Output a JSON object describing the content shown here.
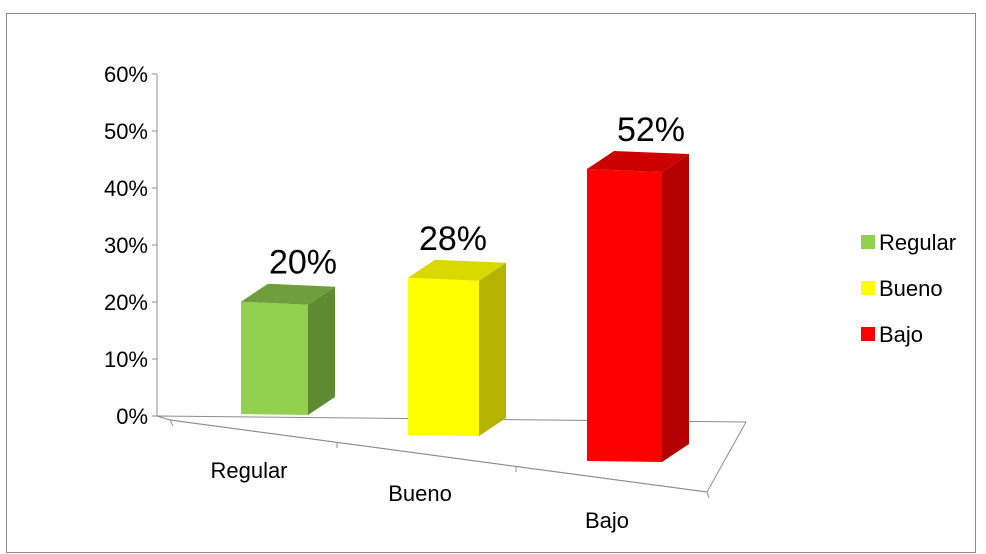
{
  "chart_data": {
    "type": "bar",
    "categories": [
      "Regular",
      "Bueno",
      "Bajo"
    ],
    "values": [
      20,
      28,
      52
    ],
    "data_labels": [
      "20%",
      "28%",
      "52%"
    ],
    "y_ticks": [
      "0%",
      "10%",
      "20%",
      "30%",
      "40%",
      "50%",
      "60%"
    ],
    "ylim": [
      0,
      60
    ],
    "grid": false,
    "legend_placement": "right",
    "legend": [
      "Regular",
      "Bueno",
      "Bajo"
    ],
    "colors": {
      "Regular": {
        "front": "#92d050",
        "side": "#5e8a32",
        "top": "#6f9e3c"
      },
      "Bueno": {
        "front": "#ffff00",
        "side": "#b3b300",
        "top": "#d9d900"
      },
      "Bajo": {
        "front": "#ff0000",
        "side": "#b30000",
        "top": "#cc0000"
      }
    }
  }
}
